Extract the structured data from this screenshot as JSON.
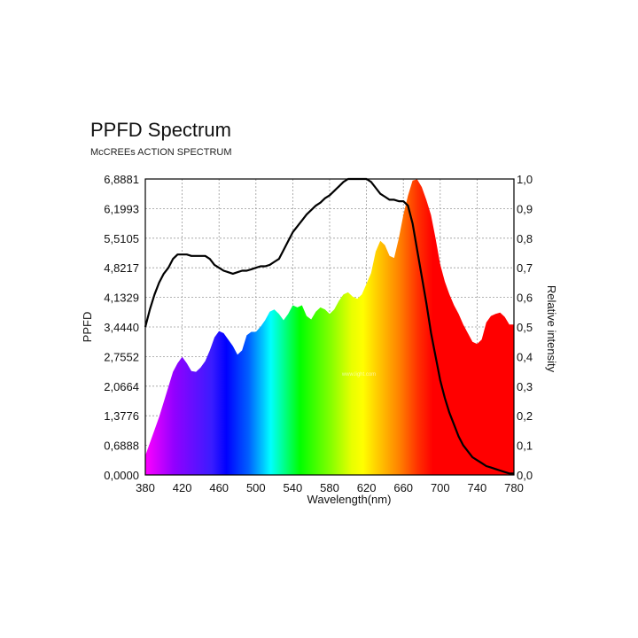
{
  "chart_data": {
    "type": "area",
    "title": "PPFD Spectrum",
    "subtitle": "McCREEs ACTION SPECTRUM",
    "xlabel": "Wavelength(nm)",
    "ylabel": "PPFD",
    "y2label": "Relative intensity",
    "xlim": [
      380,
      780
    ],
    "ylim": [
      0,
      6.8881
    ],
    "y2lim": [
      0,
      1.0
    ],
    "x_ticks": [
      "380",
      "420",
      "460",
      "500",
      "540",
      "580",
      "620",
      "660",
      "700",
      "740",
      "780"
    ],
    "y_ticks": [
      "0,0000",
      "0,6888",
      "1,3776",
      "2,0664",
      "2,7552",
      "3,4440",
      "4,1329",
      "4,8217",
      "5,5105",
      "6,1993",
      "6,8881"
    ],
    "y2_ticks": [
      "0,0",
      "0,1",
      "0,2",
      "0,3",
      "0,4",
      "0,5",
      "0,6",
      "0,7",
      "0,8",
      "0,9",
      "1,0"
    ],
    "grid": true,
    "series": [
      {
        "kind": "area",
        "fill": "visible-spectrum",
        "x": [
          380,
          385,
          390,
          395,
          400,
          405,
          410,
          415,
          420,
          425,
          430,
          435,
          440,
          445,
          450,
          455,
          460,
          465,
          470,
          475,
          480,
          485,
          490,
          495,
          500,
          505,
          510,
          515,
          520,
          525,
          530,
          535,
          540,
          545,
          550,
          555,
          560,
          565,
          570,
          575,
          580,
          585,
          590,
          595,
          600,
          605,
          610,
          615,
          620,
          625,
          630,
          635,
          640,
          645,
          650,
          655,
          660,
          665,
          670,
          675,
          680,
          685,
          690,
          695,
          700,
          705,
          710,
          715,
          720,
          725,
          730,
          735,
          740,
          745,
          750,
          755,
          760,
          765,
          770,
          775,
          780
        ],
        "values": [
          0.45,
          0.75,
          1.05,
          1.35,
          1.7,
          2.05,
          2.4,
          2.6,
          2.75,
          2.6,
          2.42,
          2.4,
          2.5,
          2.65,
          2.9,
          3.2,
          3.35,
          3.3,
          3.15,
          3.0,
          2.8,
          2.9,
          3.25,
          3.33,
          3.33,
          3.45,
          3.6,
          3.8,
          3.85,
          3.75,
          3.6,
          3.75,
          3.95,
          3.9,
          3.95,
          3.7,
          3.62,
          3.8,
          3.9,
          3.85,
          3.75,
          3.85,
          4.05,
          4.2,
          4.25,
          4.15,
          4.1,
          4.2,
          4.45,
          4.7,
          5.2,
          5.45,
          5.35,
          5.1,
          5.05,
          5.5,
          6.05,
          6.5,
          6.85,
          6.88,
          6.7,
          6.4,
          6.05,
          5.5,
          4.9,
          4.5,
          4.2,
          3.95,
          3.75,
          3.5,
          3.3,
          3.1,
          3.05,
          3.15,
          3.55,
          3.7,
          3.75,
          3.78,
          3.68,
          3.5,
          3.5
        ]
      },
      {
        "kind": "line",
        "axis": "right",
        "color": "#000000",
        "x": [
          380,
          385,
          390,
          395,
          400,
          405,
          410,
          415,
          420,
          425,
          430,
          435,
          440,
          445,
          450,
          455,
          460,
          465,
          470,
          475,
          480,
          485,
          490,
          495,
          500,
          505,
          510,
          515,
          520,
          525,
          530,
          535,
          540,
          545,
          550,
          555,
          560,
          565,
          570,
          575,
          580,
          585,
          590,
          595,
          600,
          605,
          610,
          615,
          620,
          625,
          630,
          635,
          640,
          645,
          650,
          655,
          660,
          665,
          670,
          675,
          680,
          685,
          690,
          695,
          700,
          705,
          710,
          715,
          720,
          725,
          730,
          735,
          740,
          745,
          750,
          755,
          760,
          765,
          770,
          775,
          780
        ],
        "values": [
          0.5,
          0.56,
          0.61,
          0.65,
          0.68,
          0.7,
          0.73,
          0.745,
          0.745,
          0.745,
          0.74,
          0.74,
          0.74,
          0.74,
          0.73,
          0.71,
          0.7,
          0.69,
          0.685,
          0.68,
          0.685,
          0.69,
          0.69,
          0.695,
          0.7,
          0.705,
          0.705,
          0.71,
          0.72,
          0.73,
          0.76,
          0.79,
          0.82,
          0.84,
          0.86,
          0.88,
          0.895,
          0.91,
          0.92,
          0.935,
          0.945,
          0.96,
          0.975,
          0.99,
          1.0,
          1.0,
          1.0,
          1.0,
          1.0,
          0.99,
          0.97,
          0.95,
          0.94,
          0.93,
          0.93,
          0.925,
          0.925,
          0.91,
          0.85,
          0.76,
          0.67,
          0.58,
          0.48,
          0.4,
          0.32,
          0.26,
          0.21,
          0.17,
          0.13,
          0.1,
          0.08,
          0.06,
          0.05,
          0.04,
          0.03,
          0.025,
          0.02,
          0.015,
          0.01,
          0.005,
          0.005
        ]
      }
    ],
    "watermark": "www.light.com"
  }
}
